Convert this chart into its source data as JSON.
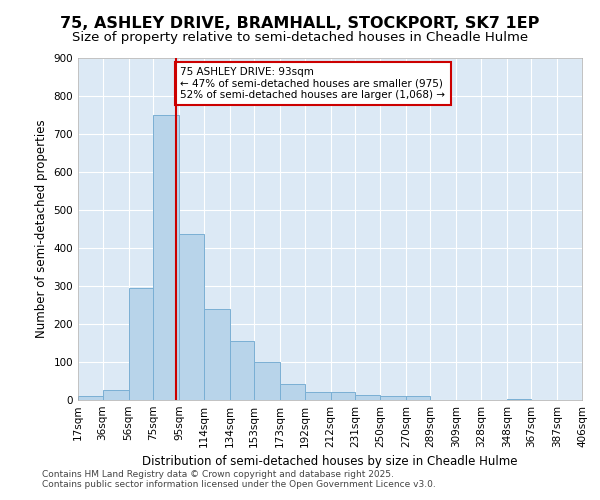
{
  "title": "75, ASHLEY DRIVE, BRAMHALL, STOCKPORT, SK7 1EP",
  "subtitle": "Size of property relative to semi-detached houses in Cheadle Hulme",
  "xlabel": "Distribution of semi-detached houses by size in Cheadle Hulme",
  "ylabel": "Number of semi-detached properties",
  "bin_labels": [
    "17sqm",
    "36sqm",
    "56sqm",
    "75sqm",
    "95sqm",
    "114sqm",
    "134sqm",
    "153sqm",
    "173sqm",
    "192sqm",
    "212sqm",
    "231sqm",
    "250sqm",
    "270sqm",
    "289sqm",
    "309sqm",
    "328sqm",
    "348sqm",
    "367sqm",
    "387sqm",
    "406sqm"
  ],
  "bin_edges": [
    17,
    36,
    56,
    75,
    95,
    114,
    134,
    153,
    173,
    192,
    212,
    231,
    250,
    270,
    289,
    309,
    328,
    348,
    367,
    387,
    406
  ],
  "bar_values": [
    10,
    25,
    295,
    750,
    435,
    240,
    155,
    100,
    42,
    22,
    20,
    13,
    10,
    10,
    0,
    0,
    0,
    2,
    0,
    0
  ],
  "bar_color": "#b8d4ea",
  "bar_edge_color": "#7aafd4",
  "property_size": 93,
  "red_line_color": "#cc0000",
  "annotation_text": "75 ASHLEY DRIVE: 93sqm\n← 47% of semi-detached houses are smaller (975)\n52% of semi-detached houses are larger (1,068) →",
  "annotation_box_color": "#ffffff",
  "annotation_box_edge_color": "#cc0000",
  "footer_text": "Contains HM Land Registry data © Crown copyright and database right 2025.\nContains public sector information licensed under the Open Government Licence v3.0.",
  "ylim": [
    0,
    900
  ],
  "plot_bg_color": "#dce9f5",
  "title_fontsize": 11.5,
  "subtitle_fontsize": 9.5,
  "axis_label_fontsize": 8.5,
  "tick_fontsize": 7.5,
  "footer_fontsize": 6.5,
  "yticks": [
    0,
    100,
    200,
    300,
    400,
    500,
    600,
    700,
    800,
    900
  ]
}
